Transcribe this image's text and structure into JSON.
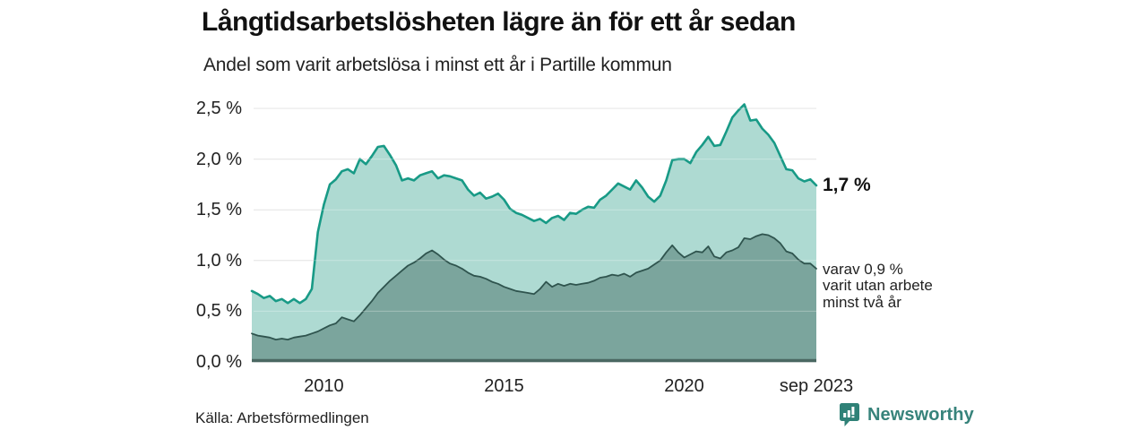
{
  "header": {
    "title": "Långtidsarbetslösheten lägre än för ett år sedan",
    "subtitle": "Andel som varit arbetslösa i minst ett år i Partille kommun"
  },
  "chart_data": {
    "type": "area",
    "title": "Långtidsarbetslösheten lägre än för ett år sedan",
    "subtitle": "Andel som varit arbetslösa i minst ett år i Partille kommun",
    "unit": "%",
    "grid": true,
    "legend_position": "end-of-line labels at right",
    "x_start": 2008.0,
    "x_step_years": 0.16667,
    "x_axis": {
      "range": [
        2008.0,
        2023.6667
      ],
      "ticks": [
        {
          "label": "2010",
          "year": 2010
        },
        {
          "label": "2015",
          "year": 2015
        },
        {
          "label": "2020",
          "year": 2020
        },
        {
          "label": "sep 2023",
          "year": 2023.6667
        }
      ]
    },
    "y_axis": {
      "range": [
        0,
        2.5
      ],
      "tick_values": [
        2.5,
        2.0,
        1.5,
        1.0,
        0.5,
        0.0
      ],
      "tick_labels": [
        "2,5 %",
        "2,0 %",
        "1,5 %",
        "1,0 %",
        "0,5 %",
        "0,0 %"
      ]
    },
    "gridline_color": "#dcdcdc",
    "axis_line_color": "#4a6862",
    "series": [
      {
        "id": "arbetslosa-minst-ett-ar",
        "end_label": "1,7 %",
        "end_value": 1.7,
        "line_color": "#189a86",
        "fill_color": "#aedad2",
        "values": [
          0.7,
          0.67,
          0.63,
          0.65,
          0.6,
          0.62,
          0.58,
          0.62,
          0.58,
          0.62,
          0.72,
          1.28,
          1.55,
          1.75,
          1.8,
          1.88,
          1.9,
          1.86,
          2.0,
          1.95,
          2.03,
          2.12,
          2.13,
          2.04,
          1.94,
          1.79,
          1.81,
          1.79,
          1.84,
          1.86,
          1.88,
          1.81,
          1.84,
          1.83,
          1.81,
          1.79,
          1.7,
          1.64,
          1.67,
          1.61,
          1.63,
          1.66,
          1.6,
          1.51,
          1.47,
          1.45,
          1.42,
          1.39,
          1.41,
          1.37,
          1.42,
          1.44,
          1.4,
          1.47,
          1.46,
          1.5,
          1.53,
          1.52,
          1.6,
          1.64,
          1.7,
          1.76,
          1.73,
          1.7,
          1.79,
          1.72,
          1.63,
          1.58,
          1.64,
          1.79,
          1.99,
          2.0,
          2.0,
          1.96,
          2.07,
          2.14,
          2.22,
          2.13,
          2.14,
          2.27,
          2.41,
          2.48,
          2.54,
          2.38,
          2.39,
          2.3,
          2.24,
          2.16,
          2.03,
          1.9,
          1.89,
          1.81,
          1.78,
          1.8,
          1.74
        ]
      },
      {
        "id": "arbetslosa-minst-tva-ar",
        "annotation_lines": [
          "varav 0,9 %",
          "varit utan arbete",
          "minst två år"
        ],
        "end_value": 0.9,
        "line_color": "#2f544e",
        "fill_color": "#7ba59d",
        "values": [
          0.28,
          0.26,
          0.25,
          0.24,
          0.22,
          0.23,
          0.22,
          0.24,
          0.25,
          0.26,
          0.28,
          0.3,
          0.33,
          0.36,
          0.38,
          0.44,
          0.42,
          0.4,
          0.46,
          0.53,
          0.6,
          0.68,
          0.74,
          0.8,
          0.85,
          0.9,
          0.95,
          0.98,
          1.02,
          1.07,
          1.1,
          1.06,
          1.01,
          0.97,
          0.95,
          0.92,
          0.88,
          0.85,
          0.84,
          0.82,
          0.79,
          0.77,
          0.74,
          0.72,
          0.7,
          0.69,
          0.68,
          0.67,
          0.72,
          0.79,
          0.74,
          0.77,
          0.75,
          0.77,
          0.76,
          0.77,
          0.78,
          0.8,
          0.83,
          0.84,
          0.86,
          0.85,
          0.87,
          0.84,
          0.88,
          0.9,
          0.92,
          0.96,
          1.0,
          1.08,
          1.15,
          1.08,
          1.03,
          1.06,
          1.09,
          1.08,
          1.14,
          1.04,
          1.02,
          1.08,
          1.1,
          1.13,
          1.22,
          1.21,
          1.24,
          1.26,
          1.25,
          1.22,
          1.17,
          1.09,
          1.07,
          1.01,
          0.97,
          0.97,
          0.92
        ]
      }
    ]
  },
  "footer": {
    "source": "Källa: Arbetsförmedlingen",
    "logo_text": "Newsworthy",
    "logo_color": "#37837b"
  }
}
